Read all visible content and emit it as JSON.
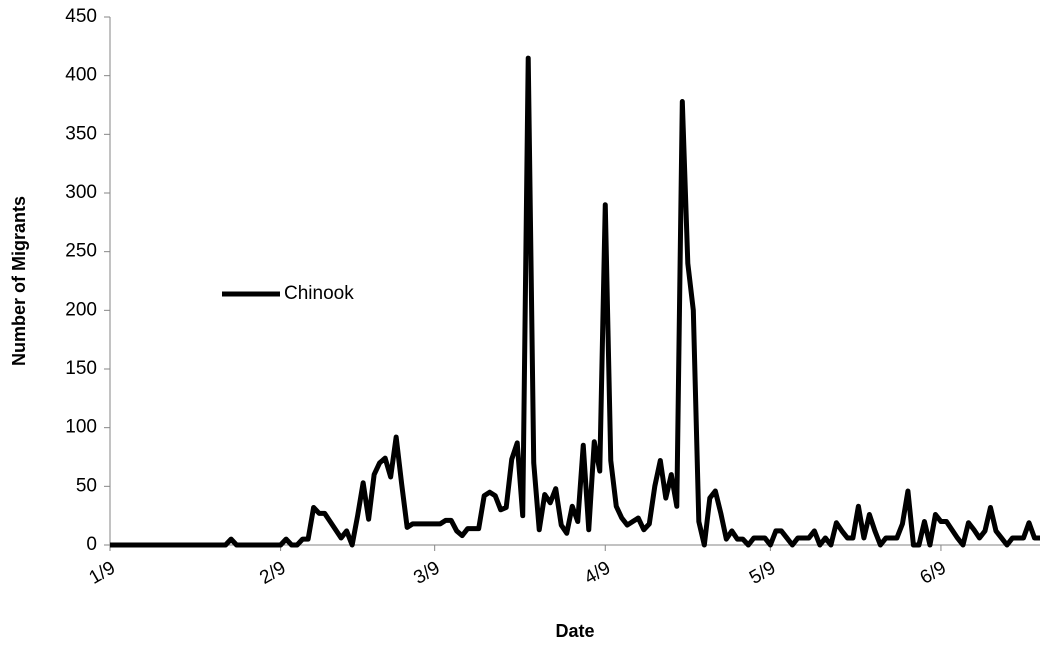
{
  "chart_data": {
    "type": "line",
    "x_label": "Date",
    "y_label": "Number of Migrants",
    "categories": [
      "1/9",
      null,
      null,
      null,
      null,
      null,
      null,
      null,
      null,
      null,
      null,
      null,
      null,
      null,
      null,
      null,
      null,
      null,
      null,
      null,
      null,
      null,
      null,
      null,
      null,
      null,
      null,
      null,
      null,
      null,
      null,
      "2/9",
      null,
      null,
      null,
      null,
      null,
      null,
      null,
      null,
      null,
      null,
      null,
      null,
      null,
      null,
      null,
      null,
      null,
      null,
      null,
      null,
      null,
      null,
      null,
      null,
      null,
      null,
      null,
      "3/9",
      null,
      null,
      null,
      null,
      null,
      null,
      null,
      null,
      null,
      null,
      null,
      null,
      null,
      null,
      null,
      null,
      null,
      null,
      null,
      null,
      null,
      null,
      null,
      null,
      null,
      null,
      null,
      null,
      null,
      null,
      "4/9",
      null,
      null,
      null,
      null,
      null,
      null,
      null,
      null,
      null,
      null,
      null,
      null,
      null,
      null,
      null,
      null,
      null,
      null,
      null,
      null,
      null,
      null,
      null,
      null,
      null,
      null,
      null,
      null,
      null,
      "5/9",
      null,
      null,
      null,
      null,
      null,
      null,
      null,
      null,
      null,
      null,
      null,
      null,
      null,
      null,
      null,
      null,
      null,
      null,
      null,
      null,
      null,
      null,
      null,
      null,
      null,
      null,
      null,
      null,
      null,
      null,
      "6/9",
      null,
      null,
      null,
      null,
      null,
      null,
      null,
      null,
      null,
      null,
      null,
      null,
      null,
      null,
      null,
      null,
      null,
      null
    ],
    "series": [
      {
        "name": "Chinook",
        "color": "#000000",
        "values": [
          0,
          0,
          0,
          0,
          0,
          0,
          0,
          0,
          0,
          0,
          0,
          0,
          0,
          0,
          0,
          0,
          0,
          0,
          0,
          0,
          0,
          0,
          5,
          0,
          0,
          0,
          0,
          0,
          0,
          0,
          0,
          0,
          5,
          0,
          0,
          5,
          5,
          32,
          27,
          27,
          20,
          13,
          6,
          12,
          0,
          25,
          53,
          22,
          60,
          70,
          74,
          58,
          92,
          52,
          15,
          18,
          18,
          18,
          18,
          18,
          18,
          21,
          21,
          12,
          8,
          14,
          14,
          14,
          42,
          45,
          42,
          30,
          32,
          73,
          87,
          25,
          415,
          70,
          13,
          43,
          36,
          48,
          17,
          10,
          33,
          20,
          85,
          13,
          88,
          63,
          290,
          72,
          33,
          23,
          17,
          20,
          23,
          13,
          18,
          50,
          72,
          40,
          60,
          33,
          378,
          240,
          200,
          20,
          0,
          40,
          46,
          27,
          5,
          12,
          5,
          5,
          0,
          6,
          6,
          6,
          0,
          12,
          12,
          6,
          0,
          6,
          6,
          6,
          12,
          0,
          6,
          0,
          19,
          12,
          6,
          6,
          33,
          6,
          26,
          12,
          0,
          6,
          6,
          6,
          18,
          46,
          0,
          0,
          20,
          0,
          26,
          20,
          20,
          13,
          6,
          0,
          19,
          13,
          6,
          12,
          32,
          12,
          6,
          0,
          6,
          6,
          6,
          19,
          6,
          6
        ]
      }
    ],
    "ylim": [
      0,
      450
    ],
    "yticks": [
      0,
      50,
      100,
      150,
      200,
      250,
      300,
      350,
      400,
      450
    ],
    "grid": false,
    "legend": "left"
  }
}
